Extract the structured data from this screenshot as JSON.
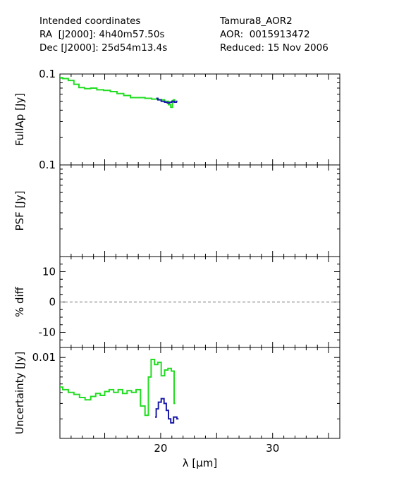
{
  "header": {
    "left": [
      "Intended coordinates",
      "RA  [J2000]: 4h40m57.50s",
      "Dec [J2000]: 25d54m13.4s"
    ],
    "right": [
      "Tamura8_AOR2",
      "AOR:  0015913472",
      "Reduced: 15 Nov 2006"
    ]
  },
  "colors": {
    "green": "#22dd22",
    "blue": "#1a1aaa",
    "axis": "#000000",
    "dash": "#666666"
  },
  "chart_data": [
    {
      "type": "line",
      "ylabel": "FullAp [Jy]",
      "ytick_labels": [
        "0.1"
      ],
      "yscale": "log",
      "ylim": [
        0.01,
        0.1
      ],
      "xlim": [
        11,
        36
      ],
      "series": [
        {
          "color": "green",
          "points": [
            [
              11.0,
              0.091
            ],
            [
              11.5,
              0.089
            ],
            [
              12.0,
              0.085
            ],
            [
              12.5,
              0.077
            ],
            [
              12.9,
              0.071
            ],
            [
              13.5,
              0.069
            ],
            [
              14.0,
              0.07
            ],
            [
              14.6,
              0.067
            ],
            [
              15.2,
              0.066
            ],
            [
              15.8,
              0.064
            ],
            [
              16.4,
              0.061
            ],
            [
              17.0,
              0.058
            ],
            [
              17.6,
              0.055
            ],
            [
              18.3,
              0.055
            ],
            [
              18.9,
              0.054
            ],
            [
              19.5,
              0.053
            ],
            [
              20.1,
              0.052
            ],
            [
              20.6,
              0.05
            ],
            [
              20.8,
              0.046
            ],
            [
              21.0,
              0.043
            ],
            [
              21.1,
              0.051
            ],
            [
              21.2,
              0.052
            ],
            [
              21.3,
              0.05
            ]
          ]
        },
        {
          "color": "blue",
          "points": [
            [
              19.6,
              0.054
            ],
            [
              19.9,
              0.052
            ],
            [
              20.2,
              0.05
            ],
            [
              20.5,
              0.049
            ],
            [
              20.7,
              0.048
            ],
            [
              20.9,
              0.049
            ],
            [
              21.1,
              0.05
            ],
            [
              21.3,
              0.049
            ],
            [
              21.5,
              0.05
            ]
          ]
        }
      ]
    },
    {
      "type": "line",
      "ylabel": "PSF [Jy]",
      "ytick_labels": [
        "0.1"
      ],
      "yscale": "log",
      "ylim": [
        0.01,
        0.1
      ],
      "xlim": [
        11,
        36
      ],
      "series": []
    },
    {
      "type": "line",
      "ylabel": "% diff",
      "ytick_labels": [
        "10",
        "0",
        "-10"
      ],
      "ytick_values": [
        10,
        0,
        -10
      ],
      "ylim": [
        -15,
        15
      ],
      "xlim": [
        11,
        36
      ],
      "reference_line": {
        "y": 0,
        "style": "dashed"
      },
      "series": []
    },
    {
      "type": "line",
      "ylabel": "Uncertainty [Jy]",
      "xlabel": "λ [μm]",
      "xtick_labels": [
        "20",
        "30"
      ],
      "xtick_values": [
        20,
        30
      ],
      "ytick_labels": [
        "0.01"
      ],
      "yscale": "log",
      "ylim": [
        0.0012,
        0.013
      ],
      "xlim": [
        11,
        36
      ],
      "series": [
        {
          "color": "green",
          "points": [
            [
              11.0,
              0.0046
            ],
            [
              11.5,
              0.0043
            ],
            [
              12.0,
              0.004
            ],
            [
              12.5,
              0.0038
            ],
            [
              13.0,
              0.0035
            ],
            [
              13.5,
              0.0033
            ],
            [
              14.0,
              0.0036
            ],
            [
              14.4,
              0.0039
            ],
            [
              14.8,
              0.0037
            ],
            [
              15.2,
              0.0041
            ],
            [
              15.6,
              0.0043
            ],
            [
              16.0,
              0.004
            ],
            [
              16.4,
              0.0043
            ],
            [
              16.8,
              0.0039
            ],
            [
              17.2,
              0.0042
            ],
            [
              17.6,
              0.004
            ],
            [
              18.0,
              0.0043
            ],
            [
              18.4,
              0.0028
            ],
            [
              18.8,
              0.0022
            ],
            [
              19.0,
              0.006
            ],
            [
              19.3,
              0.0095
            ],
            [
              19.6,
              0.0083
            ],
            [
              19.9,
              0.0088
            ],
            [
              20.2,
              0.0062
            ],
            [
              20.5,
              0.0072
            ],
            [
              20.8,
              0.0075
            ],
            [
              21.1,
              0.007
            ],
            [
              21.3,
              0.003
            ]
          ]
        },
        {
          "color": "blue",
          "points": [
            [
              19.5,
              0.0021
            ],
            [
              19.7,
              0.0026
            ],
            [
              19.9,
              0.0031
            ],
            [
              20.2,
              0.0034
            ],
            [
              20.4,
              0.003
            ],
            [
              20.6,
              0.0025
            ],
            [
              20.8,
              0.002
            ],
            [
              21.0,
              0.0018
            ],
            [
              21.3,
              0.0021
            ],
            [
              21.6,
              0.002
            ]
          ]
        }
      ]
    }
  ]
}
